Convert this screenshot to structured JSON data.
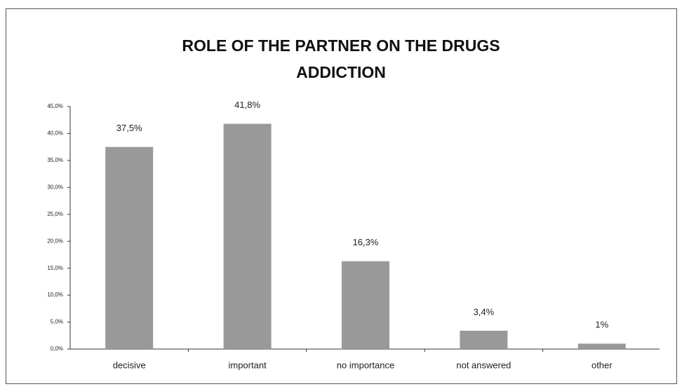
{
  "chart_data": {
    "type": "bar",
    "title": "ROLE OF THE PARTNER ON THE DRUGS ADDICTION",
    "categories": [
      "decisive",
      "important",
      "no importance",
      "not answered",
      "other"
    ],
    "values": [
      37.5,
      41.8,
      16.3,
      3.4,
      1
    ],
    "value_labels": [
      "37,5%",
      "41,8%",
      "16,3%",
      "3,4%",
      "1%"
    ],
    "color": "#999999",
    "ylim": [
      0,
      45
    ],
    "yticks": [
      {
        "value": 0,
        "label": "0,0%"
      },
      {
        "value": 5,
        "label": "5,0%"
      },
      {
        "value": 10,
        "label": "10,0%"
      },
      {
        "value": 15,
        "label": "15,0%"
      },
      {
        "value": 20,
        "label": "20,0%"
      },
      {
        "value": 25,
        "label": "25,0%"
      },
      {
        "value": 30,
        "label": "30,0%"
      },
      {
        "value": 35,
        "label": "35,0%"
      },
      {
        "value": 40,
        "label": "40,0%"
      },
      {
        "value": 45,
        "label": "45,0%"
      }
    ],
    "grid": false
  }
}
